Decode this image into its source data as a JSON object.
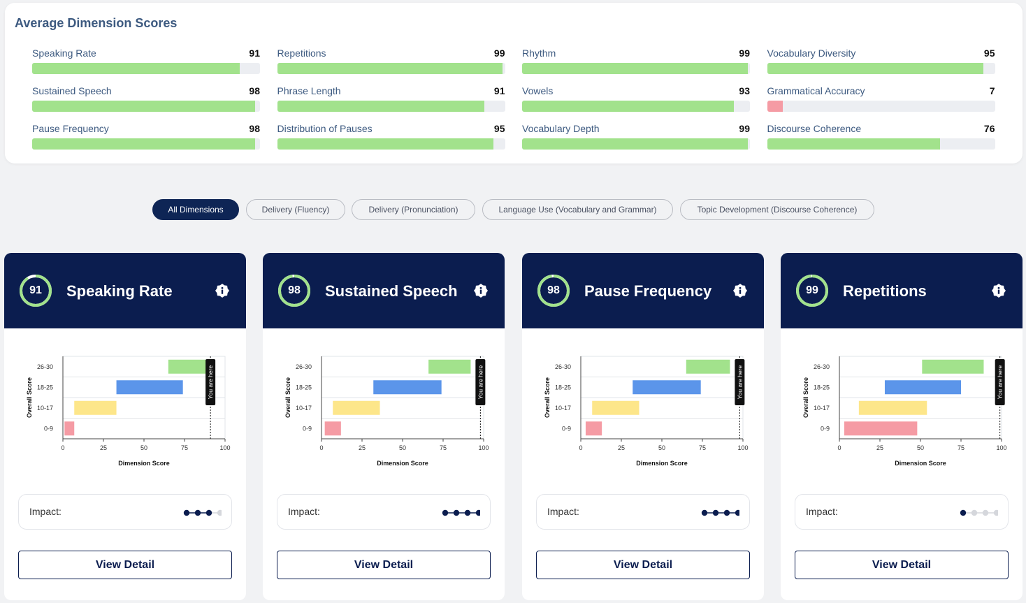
{
  "summary": {
    "title": "Average Dimension Scores",
    "items": [
      {
        "label": "Speaking Rate",
        "score": 91
      },
      {
        "label": "Repetitions",
        "score": 99
      },
      {
        "label": "Rhythm",
        "score": 99
      },
      {
        "label": "Vocabulary Diversity",
        "score": 95
      },
      {
        "label": "Sustained Speech",
        "score": 98
      },
      {
        "label": "Phrase Length",
        "score": 91
      },
      {
        "label": "Vowels",
        "score": 93
      },
      {
        "label": "Grammatical Accuracy",
        "score": 7
      },
      {
        "label": "Pause Frequency",
        "score": 98
      },
      {
        "label": "Distribution of Pauses",
        "score": 95
      },
      {
        "label": "Vocabulary Depth",
        "score": 99
      },
      {
        "label": "Discourse Coherence",
        "score": 76
      }
    ]
  },
  "filters": [
    {
      "label": "All Dimensions",
      "active": true
    },
    {
      "label": "Delivery (Fluency)",
      "active": false
    },
    {
      "label": "Delivery (Pronunciation)",
      "active": false
    },
    {
      "label": "Language Use (Vocabulary and Grammar)",
      "active": false
    },
    {
      "label": "Topic Development (Discourse Coherence)",
      "active": false
    }
  ],
  "cards": [
    {
      "title": "Speaking Rate",
      "score": "91",
      "impact_label": "Impact:",
      "impact_level": 3,
      "button": "View Detail"
    },
    {
      "title": "Sustained Speech",
      "score": "98",
      "impact_label": "Impact:",
      "impact_level": 4,
      "button": "View Detail"
    },
    {
      "title": "Pause Frequency",
      "score": "98",
      "impact_label": "Impact:",
      "impact_level": 4,
      "button": "View Detail"
    },
    {
      "title": "Repetitions",
      "score": "99",
      "impact_label": "Impact:",
      "impact_level": 1,
      "button": "View Detail"
    }
  ],
  "colors": {
    "green": "#a2e28c",
    "blue": "#5b95ea",
    "yellow": "#fde68a",
    "red": "#f59ba4",
    "navy": "#0b1d4f"
  },
  "chart_data": [
    {
      "type": "bar",
      "orientation": "horizontal-range",
      "xlabel": "Dimension Score",
      "ylabel": "Overall Score",
      "marker_label": "You are here",
      "categories": [
        "26-30",
        "18-25",
        "10-17",
        "0-9"
      ],
      "xticks": [
        0,
        25,
        50,
        75,
        100
      ],
      "xlim": [
        0,
        100
      ],
      "ranges": [
        [
          65,
          93
        ],
        [
          33,
          74
        ],
        [
          7,
          33
        ],
        [
          1,
          7
        ]
      ],
      "marker": 91
    },
    {
      "type": "bar",
      "orientation": "horizontal-range",
      "xlabel": "Dimension Score",
      "ylabel": "Overall Score",
      "marker_label": "You are here",
      "categories": [
        "26-30",
        "18-25",
        "10-17",
        "0-9"
      ],
      "xticks": [
        0,
        25,
        50,
        75,
        100
      ],
      "xlim": [
        0,
        100
      ],
      "ranges": [
        [
          66,
          92
        ],
        [
          32,
          74
        ],
        [
          7,
          36
        ],
        [
          2,
          12
        ]
      ],
      "marker": 98
    },
    {
      "type": "bar",
      "orientation": "horizontal-range",
      "xlabel": "Dimension Score",
      "ylabel": "Overall Score",
      "marker_label": "You are here",
      "categories": [
        "26-30",
        "18-25",
        "10-17",
        "0-9"
      ],
      "xticks": [
        0,
        25,
        50,
        75,
        100
      ],
      "xlim": [
        0,
        100
      ],
      "ranges": [
        [
          65,
          92
        ],
        [
          32,
          74
        ],
        [
          7,
          36
        ],
        [
          3,
          13
        ]
      ],
      "marker": 98
    },
    {
      "type": "bar",
      "orientation": "horizontal-range",
      "xlabel": "Dimension Score",
      "ylabel": "Overall Score",
      "marker_label": "You are here",
      "categories": [
        "26-30",
        "18-25",
        "10-17",
        "0-9"
      ],
      "xticks": [
        0,
        25,
        50,
        75,
        100
      ],
      "xlim": [
        0,
        100
      ],
      "ranges": [
        [
          51,
          89
        ],
        [
          28,
          75
        ],
        [
          12,
          54
        ],
        [
          3,
          48
        ]
      ],
      "marker": 99
    }
  ]
}
